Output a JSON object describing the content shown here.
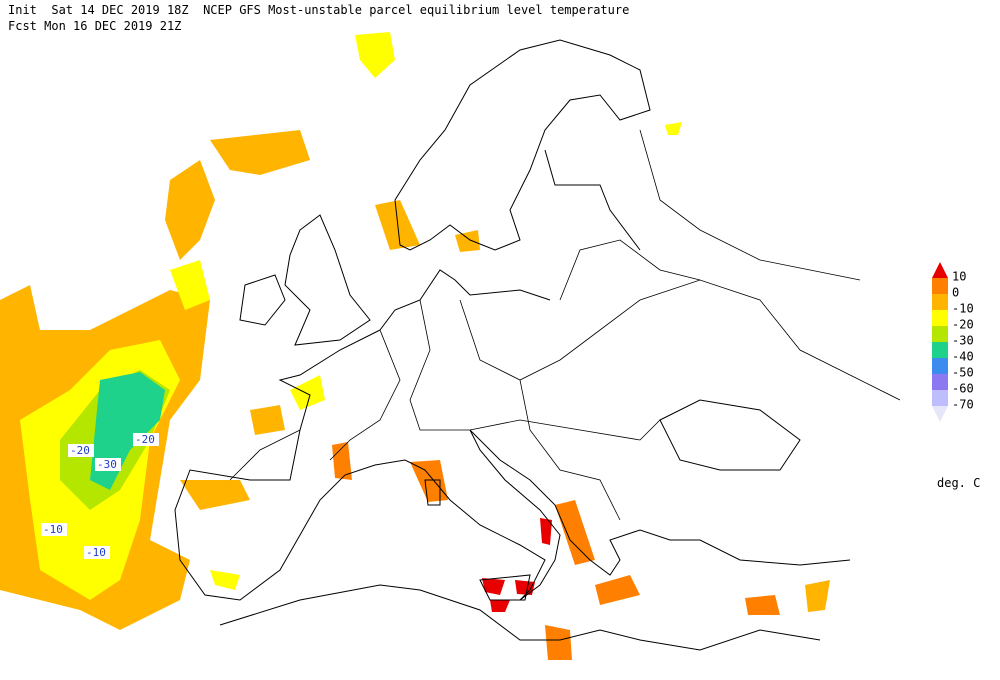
{
  "header": {
    "line1": "Init  Sat 14 DEC 2019 18Z  NCEP GFS Most-unstable parcel equilibrium level temperature",
    "line2": "Fcst Mon 16 DEC 2019 21Z"
  },
  "colorbar": {
    "ticks": [
      10,
      0,
      -10,
      -20,
      -30,
      -40,
      -50,
      -60,
      -70
    ],
    "colors": [
      "#e80000",
      "#ff8000",
      "#ffb400",
      "#ffff00",
      "#b4e600",
      "#1ed28c",
      "#3c8cf0",
      "#8c78f0",
      "#bebeff",
      "#e6e6fa"
    ],
    "unit": "deg. C"
  },
  "contour_labels": [
    -20,
    -30,
    -20,
    -10,
    -10
  ]
}
